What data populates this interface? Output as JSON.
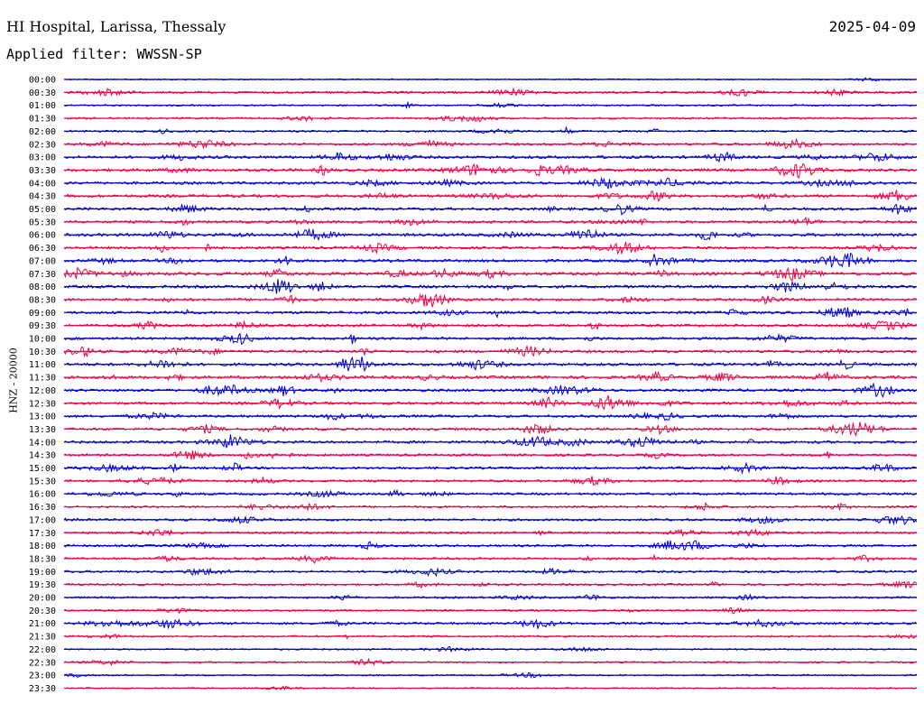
{
  "header": {
    "station": "HI Hospital, Larissa, Thessaly",
    "date": "2025-04-09",
    "filter": "Applied filter: WWSSN-SP"
  },
  "chart_data": {
    "type": "line",
    "title": "HI Hospital, Larissa, Thessaly",
    "subtitle": "Applied filter: WWSSN-SP",
    "ylabel": "HNZ - 20000",
    "xlabel": "",
    "grid": false,
    "legend": "none",
    "rows": [
      "00:00",
      "00:30",
      "01:00",
      "01:30",
      "02:00",
      "02:30",
      "03:00",
      "03:30",
      "04:00",
      "04:30",
      "05:00",
      "05:30",
      "06:00",
      "06:30",
      "07:00",
      "07:30",
      "08:00",
      "08:30",
      "09:00",
      "09:30",
      "10:00",
      "10:30",
      "11:00",
      "11:30",
      "12:00",
      "12:30",
      "13:00",
      "13:30",
      "14:00",
      "14:30",
      "15:00",
      "15:30",
      "16:00",
      "16:30",
      "17:00",
      "17:30",
      "18:00",
      "18:30",
      "19:00",
      "19:30",
      "20:00",
      "20:30",
      "21:00",
      "21:30",
      "22:00",
      "22:30",
      "23:00",
      "23:30"
    ],
    "colors": [
      "#0000cc",
      "#ee0044"
    ],
    "activity_level": [
      0.05,
      0.35,
      0.2,
      0.25,
      0.3,
      0.45,
      0.6,
      0.65,
      0.55,
      0.6,
      0.55,
      0.5,
      0.65,
      0.5,
      0.55,
      0.7,
      0.6,
      0.55,
      0.55,
      0.5,
      0.5,
      0.55,
      0.6,
      0.65,
      0.55,
      0.55,
      0.5,
      0.5,
      0.55,
      0.45,
      0.45,
      0.4,
      0.45,
      0.35,
      0.4,
      0.35,
      0.4,
      0.4,
      0.4,
      0.35,
      0.3,
      0.25,
      0.45,
      0.25,
      0.15,
      0.2,
      0.15,
      0.05
    ]
  }
}
